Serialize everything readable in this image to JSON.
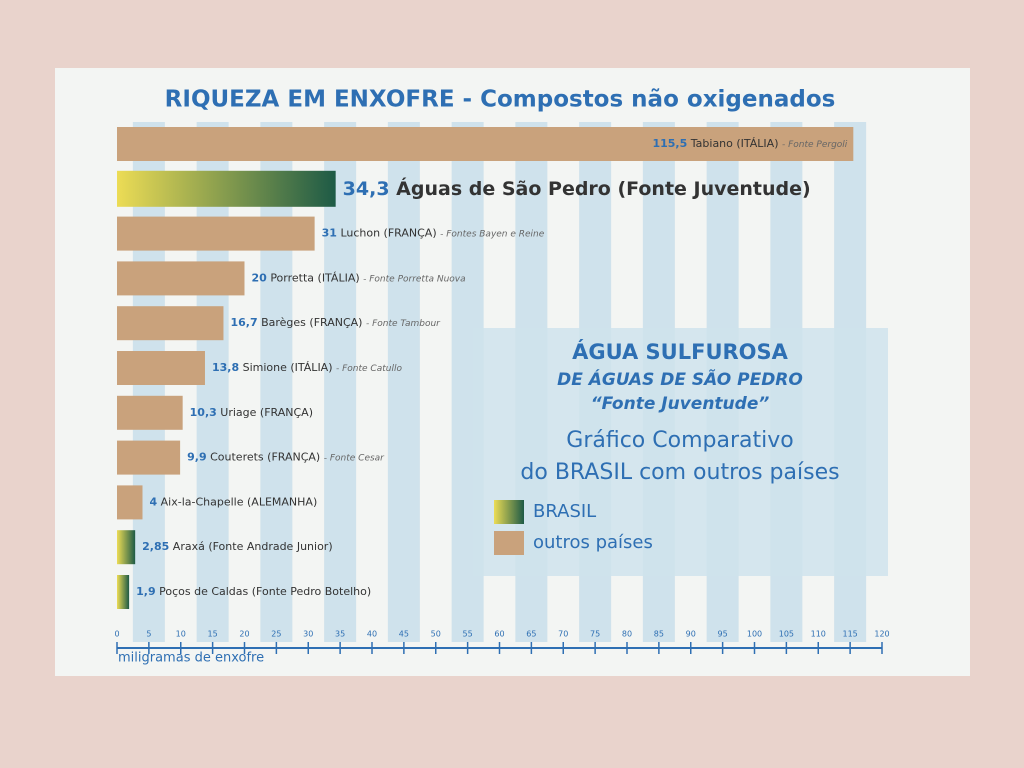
{
  "chart_data": {
    "type": "bar",
    "orientation": "horizontal",
    "title": "RIQUEZA EM ENXOFRE - Compostos não oxigenados",
    "x_label": "miligramas de enxofre",
    "categories": [
      "Tabiano (ITÁLIA)",
      "Águas de São Pedro (Fonte Juventude)",
      "Luchon (FRANÇA)",
      "Porretta (ITÁLIA)",
      "Barèges (FRANÇA)",
      "Simione (ITÁLIA)",
      "Uriage (FRANÇA)",
      "Couterets (FRANÇA)",
      "Aix-la-Chapelle (ALEMANHA)",
      "Araxá (Fonte Andrade Junior)",
      "Poços de Caldas (Fonte Pedro Botelho)"
    ],
    "sources": [
      "- Fonte Pergoli",
      null,
      "- Fontes Bayen e Reine",
      "- Fonte Porretta Nuova",
      "- Fonte Tambour",
      "- Fonte Catullo",
      null,
      "- Fonte Cesar",
      null,
      null,
      null
    ],
    "series": [
      {
        "name": "BRASIL",
        "color": "#1d5a46",
        "values": [
          null,
          34.3,
          null,
          null,
          null,
          null,
          null,
          null,
          null,
          2.85,
          1.9
        ],
        "value_labels": [
          null,
          "34,3",
          null,
          null,
          null,
          null,
          null,
          null,
          null,
          "2,85",
          "1,9"
        ]
      },
      {
        "name": "outros países",
        "color": "#c9a27c",
        "values": [
          115.5,
          null,
          31,
          20,
          16.7,
          13.8,
          10.3,
          9.9,
          4,
          null,
          null
        ],
        "value_labels": [
          "115,5",
          null,
          "31",
          "20",
          "16,7",
          "13,8",
          "10,3",
          "9,9",
          "4",
          null,
          null
        ]
      }
    ],
    "legend_title": [
      "ÁGUA SULFUROSA",
      "DE ÁGUAS DE SÃO PEDRO",
      "“Fonte Juventude”"
    ],
    "legend_subtitle": [
      "Gráfico Comparativo",
      "do BRASIL com outros países"
    ],
    "xlim": [
      0,
      120
    ],
    "xticks": [
      0,
      5,
      10,
      15,
      20,
      25,
      30,
      35,
      40,
      45,
      50,
      55,
      60,
      65,
      70,
      75,
      80,
      85,
      90,
      95,
      100,
      105,
      110,
      115,
      120
    ]
  }
}
